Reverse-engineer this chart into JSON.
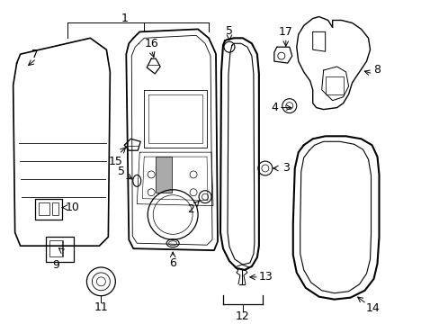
{
  "bg_color": "#ffffff",
  "line_color": "#000000",
  "font_size": 8,
  "diagram_color": "#000000"
}
